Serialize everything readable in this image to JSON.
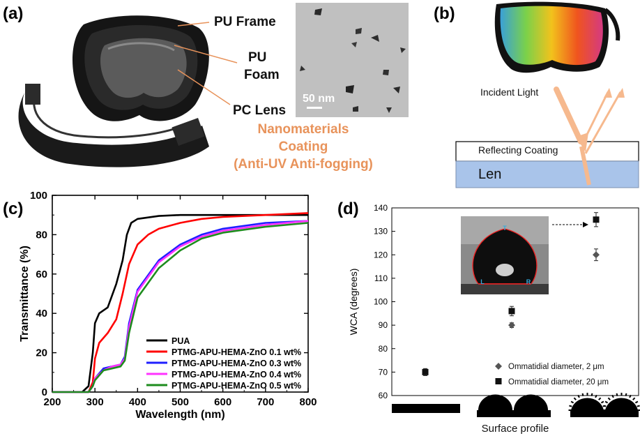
{
  "panels": {
    "a": {
      "label": "(a)",
      "callouts": [
        "PU Frame",
        "PU",
        "Foam",
        "PC Lens"
      ],
      "coating": [
        "Nanomaterials",
        "Coating",
        "(Anti-UV  Anti-fogging)"
      ],
      "scale_bar": "50 nm"
    },
    "b": {
      "label": "(b)",
      "incident": "Incident Light",
      "coating_layer": "Reflecting Coating",
      "lens_layer": "Len"
    },
    "c": {
      "label": "(c)"
    },
    "d": {
      "label": "(d)",
      "xlabel": "Surface profile"
    }
  },
  "colors": {
    "orange": "#e8935b",
    "lens_blue": "#a9c4ea",
    "pua": "#000000",
    "s01": "#ff0000",
    "s03": "#1f1fff",
    "s04": "#ff33ff",
    "s05": "#1e8c1e"
  },
  "chart_data": [
    {
      "type": "line",
      "panel": "c",
      "xlabel": "Wavelength (nm)",
      "ylabel": "Transmittance (%)",
      "xlim": [
        200,
        800
      ],
      "ylim": [
        0,
        100
      ],
      "xticks": [
        200,
        300,
        400,
        500,
        600,
        700,
        800
      ],
      "yticks": [
        0,
        20,
        40,
        60,
        80,
        100
      ],
      "legend_position": "bottom-right",
      "series": [
        {
          "name": "PUA",
          "color": "#000000",
          "x": [
            200,
            270,
            285,
            295,
            300,
            310,
            330,
            350,
            365,
            375,
            385,
            400,
            450,
            500,
            550,
            600,
            700,
            800
          ],
          "y": [
            0,
            0,
            3,
            20,
            35,
            40,
            43,
            55,
            67,
            80,
            86,
            88,
            89.5,
            90,
            90,
            90,
            90,
            90
          ]
        },
        {
          "name": "PTMG-APU-HEMA-ZnO 0.1 wt%",
          "color": "#ff0000",
          "x": [
            200,
            285,
            295,
            300,
            310,
            330,
            350,
            365,
            380,
            400,
            425,
            450,
            500,
            550,
            600,
            700,
            800
          ],
          "y": [
            0,
            0,
            5,
            17,
            25,
            30,
            37,
            50,
            65,
            75,
            80,
            83,
            86,
            88,
            89,
            90,
            91
          ]
        },
        {
          "name": "PTMG-APU-HEMA-ZnO 0.3 wt%",
          "color": "#1f1fff",
          "x": [
            200,
            285,
            295,
            300,
            320,
            340,
            360,
            370,
            380,
            400,
            450,
            500,
            550,
            600,
            700,
            800
          ],
          "y": [
            0,
            0,
            3,
            7,
            12,
            13,
            14,
            18,
            35,
            52,
            67,
            75,
            80,
            83,
            86,
            87
          ]
        },
        {
          "name": "PTMG-APU-HEMA-ZnO 0.4 wt%",
          "color": "#ff33ff",
          "x": [
            200,
            285,
            295,
            300,
            320,
            340,
            360,
            370,
            380,
            400,
            450,
            500,
            550,
            600,
            700,
            800
          ],
          "y": [
            0,
            0,
            3,
            7,
            11,
            13,
            14,
            17,
            33,
            51,
            66,
            74,
            79,
            82,
            85,
            87
          ]
        },
        {
          "name": "PTMG-APU-HEMA-ZnO 0.5 wt%",
          "color": "#1e8c1e",
          "x": [
            200,
            285,
            295,
            300,
            320,
            340,
            360,
            370,
            380,
            400,
            450,
            500,
            550,
            600,
            700,
            800
          ],
          "y": [
            0,
            0,
            3,
            6,
            11,
            12,
            13,
            16,
            30,
            48,
            63,
            72,
            78,
            81,
            84,
            86
          ]
        }
      ]
    },
    {
      "type": "scatter",
      "panel": "d",
      "ylabel": "WCA (degrees)",
      "xlabel": "Surface profile",
      "ylim": [
        60,
        140
      ],
      "yticks": [
        60,
        70,
        80,
        90,
        100,
        110,
        120,
        130,
        140
      ],
      "legend_position": "bottom-right",
      "series": [
        {
          "name": "Ommatidial diameter, 2 μm",
          "marker": "diamond",
          "color": "#555555",
          "x": [
            2,
            3
          ],
          "y": [
            90,
            120
          ],
          "err": [
            1,
            2.5
          ]
        },
        {
          "name": "Ommatidial diameter, 20 μm",
          "marker": "square",
          "color": "#111111",
          "x": [
            1,
            2,
            3
          ],
          "y": [
            70,
            96,
            135
          ],
          "err": [
            1.5,
            2,
            3
          ]
        }
      ],
      "inset_markers": [
        "T",
        "L",
        "R"
      ]
    }
  ]
}
